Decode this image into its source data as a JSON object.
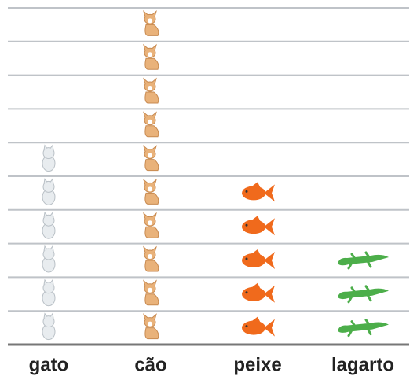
{
  "chart_data": {
    "type": "pictograph",
    "categories": [
      "gato",
      "cão",
      "peixe",
      "lagarto"
    ],
    "values": [
      6,
      10,
      5,
      3
    ],
    "colors": [
      "#e8ecef",
      "#e9b27a",
      "#f06a1c",
      "#4cae4a"
    ],
    "ylim": [
      0,
      10
    ],
    "grid": true
  }
}
